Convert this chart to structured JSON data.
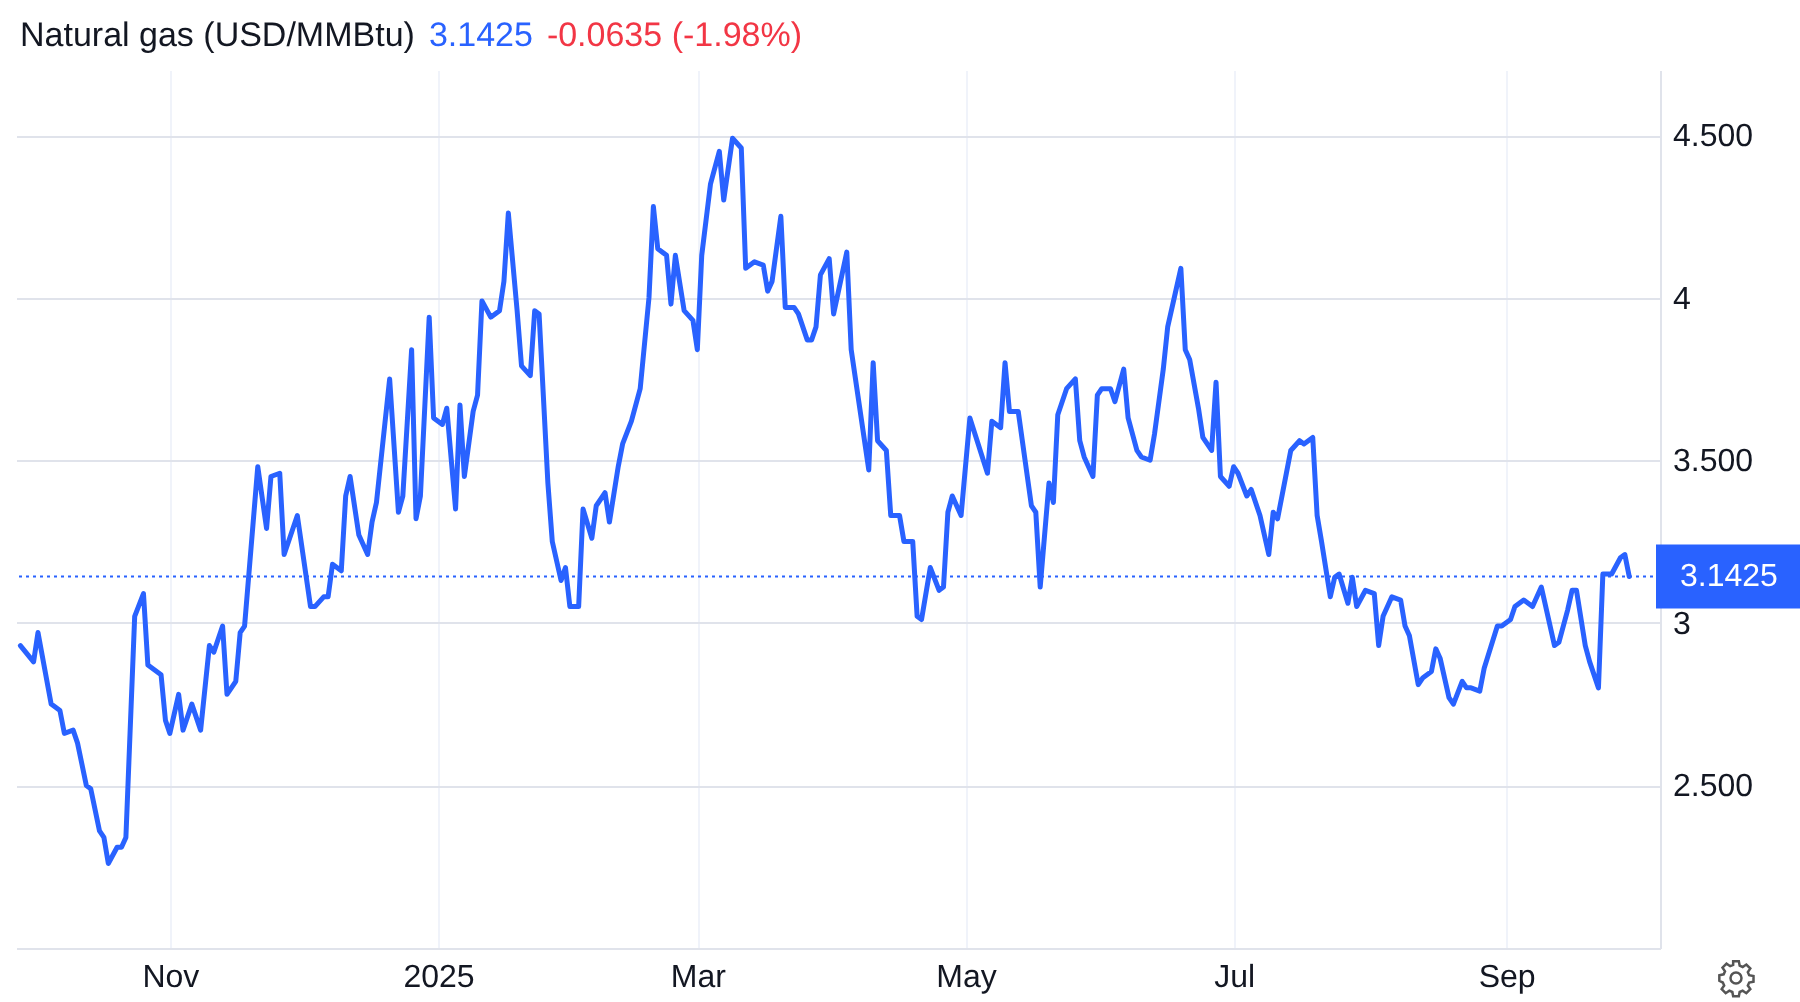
{
  "chart_data": {
    "type": "line",
    "title": "Natural gas (USD/MMBtu)",
    "annotations": [
      "3.1425",
      "-0.0635 (-1.98%)"
    ],
    "x": [
      "2024-09-28",
      "2024-10-01",
      "2024-10-02",
      "2024-10-05",
      "2024-10-07",
      "2024-10-08",
      "2024-10-10",
      "2024-10-11",
      "2024-10-13",
      "2024-10-14",
      "2024-10-16",
      "2024-10-17",
      "2024-10-18",
      "2024-10-20",
      "2024-10-21",
      "2024-10-22",
      "2024-10-24",
      "2024-10-26",
      "2024-10-27",
      "2024-10-30",
      "2024-10-31",
      "2024-11-01",
      "2024-11-03",
      "2024-11-04",
      "2024-11-06",
      "2024-11-08",
      "2024-11-10",
      "2024-11-11",
      "2024-11-13",
      "2024-11-14",
      "2024-11-16",
      "2024-11-17",
      "2024-11-18",
      "2024-11-21",
      "2024-11-23",
      "2024-11-24",
      "2024-11-26",
      "2024-11-27",
      "2024-11-30",
      "2024-12-03",
      "2024-12-04",
      "2024-12-06",
      "2024-12-07",
      "2024-12-08",
      "2024-12-10",
      "2024-12-11",
      "2024-12-12",
      "2024-12-14",
      "2024-12-16",
      "2024-12-17",
      "2024-12-18",
      "2024-12-21",
      "2024-12-23",
      "2024-12-24",
      "2024-12-26",
      "2024-12-27",
      "2024-12-28",
      "2024-12-30",
      "2024-12-31",
      "2025-01-02",
      "2025-01-03",
      "2025-01-05",
      "2025-01-06",
      "2025-01-07",
      "2025-01-09",
      "2025-01-10",
      "2025-01-11",
      "2025-01-13",
      "2025-01-15",
      "2025-01-16",
      "2025-01-17",
      "2025-01-19",
      "2025-01-20",
      "2025-01-22",
      "2025-01-23",
      "2025-01-24",
      "2025-01-26",
      "2025-01-27",
      "2025-01-29",
      "2025-01-30",
      "2025-01-31",
      "2025-02-02",
      "2025-02-03",
      "2025-02-05",
      "2025-02-06",
      "2025-02-08",
      "2025-02-09",
      "2025-02-11",
      "2025-02-12",
      "2025-02-14",
      "2025-02-16",
      "2025-02-18",
      "2025-02-19",
      "2025-02-20",
      "2025-02-22",
      "2025-02-23",
      "2025-02-24",
      "2025-02-26",
      "2025-02-28",
      "2025-03-01",
      "2025-03-02",
      "2025-03-04",
      "2025-03-06",
      "2025-03-07",
      "2025-03-09",
      "2025-03-11",
      "2025-03-12",
      "2025-03-14",
      "2025-03-16",
      "2025-03-17",
      "2025-03-18",
      "2025-03-20",
      "2025-03-21",
      "2025-03-23",
      "2025-03-24",
      "2025-03-26",
      "2025-03-27",
      "2025-03-28",
      "2025-03-29",
      "2025-03-31",
      "2025-04-01",
      "2025-04-04",
      "2025-04-05",
      "2025-04-09",
      "2025-04-10",
      "2025-04-11",
      "2025-04-13",
      "2025-04-14",
      "2025-04-16",
      "2025-04-17",
      "2025-04-19",
      "2025-04-20",
      "2025-04-21",
      "2025-04-23",
      "2025-04-25",
      "2025-04-26",
      "2025-04-27",
      "2025-04-28",
      "2025-04-30",
      "2025-05-02",
      "2025-05-06",
      "2025-05-07",
      "2025-05-09",
      "2025-05-10",
      "2025-05-11",
      "2025-05-13",
      "2025-05-16",
      "2025-05-17",
      "2025-05-18",
      "2025-05-20",
      "2025-05-21",
      "2025-05-22",
      "2025-05-24",
      "2025-05-26",
      "2025-05-27",
      "2025-05-28",
      "2025-05-30",
      "2025-05-31",
      "2025-06-01",
      "2025-06-03",
      "2025-06-04",
      "2025-06-06",
      "2025-06-07",
      "2025-06-09",
      "2025-06-10",
      "2025-06-12",
      "2025-06-13",
      "2025-06-15",
      "2025-06-16",
      "2025-06-19",
      "2025-06-20",
      "2025-06-21",
      "2025-06-23",
      "2025-06-24",
      "2025-06-26",
      "2025-06-27",
      "2025-06-28",
      "2025-06-30",
      "2025-07-01",
      "2025-07-02",
      "2025-07-04",
      "2025-07-05",
      "2025-07-07",
      "2025-07-09",
      "2025-07-10",
      "2025-07-11",
      "2025-07-13",
      "2025-07-14",
      "2025-07-16",
      "2025-07-17",
      "2025-07-19",
      "2025-07-20",
      "2025-07-21",
      "2025-07-23",
      "2025-07-24",
      "2025-07-25",
      "2025-07-27",
      "2025-07-28",
      "2025-07-29",
      "2025-07-31",
      "2025-08-02",
      "2025-08-03",
      "2025-08-04",
      "2025-08-06",
      "2025-08-08",
      "2025-08-09",
      "2025-08-10",
      "2025-08-12",
      "2025-08-13",
      "2025-08-15",
      "2025-08-16",
      "2025-08-17",
      "2025-08-19",
      "2025-08-20",
      "2025-08-22",
      "2025-08-23",
      "2025-08-24",
      "2025-08-26",
      "2025-08-27",
      "2025-08-30",
      "2025-08-31",
      "2025-09-02",
      "2025-09-03",
      "2025-09-05",
      "2025-09-07",
      "2025-09-09",
      "2025-09-12",
      "2025-09-13",
      "2025-09-15",
      "2025-09-16",
      "2025-09-17",
      "2025-09-19",
      "2025-09-20",
      "2025-09-22",
      "2025-09-23",
      "2025-09-25",
      "2025-09-27",
      "2025-09-28",
      "2025-09-29"
    ],
    "series": [
      {
        "color": "#2962ff",
        "values": [
          2.93,
          2.88,
          2.97,
          2.75,
          2.73,
          2.66,
          2.67,
          2.63,
          2.5,
          2.49,
          2.36,
          2.34,
          2.26,
          2.31,
          2.31,
          2.34,
          3.02,
          3.09,
          2.87,
          2.84,
          2.7,
          2.66,
          2.78,
          2.67,
          2.75,
          2.67,
          2.93,
          2.91,
          2.99,
          2.78,
          2.82,
          2.97,
          2.99,
          3.48,
          3.29,
          3.45,
          3.46,
          3.21,
          3.33,
          3.05,
          3.05,
          3.08,
          3.08,
          3.18,
          3.16,
          3.39,
          3.45,
          3.27,
          3.21,
          3.31,
          3.37,
          3.75,
          3.34,
          3.39,
          3.84,
          3.32,
          3.39,
          3.94,
          3.63,
          3.61,
          3.66,
          3.35,
          3.67,
          3.45,
          3.65,
          3.7,
          3.99,
          3.94,
          3.96,
          4.05,
          4.26,
          3.96,
          3.79,
          3.76,
          3.96,
          3.95,
          3.43,
          3.25,
          3.13,
          3.17,
          3.05,
          3.05,
          3.35,
          3.26,
          3.36,
          3.4,
          3.31,
          3.48,
          3.55,
          3.62,
          3.72,
          4.0,
          4.28,
          4.15,
          4.13,
          3.98,
          4.13,
          3.96,
          3.93,
          3.84,
          4.13,
          4.35,
          4.45,
          4.3,
          4.49,
          4.46,
          4.09,
          4.11,
          4.1,
          4.02,
          4.05,
          4.25,
          3.97,
          3.97,
          3.95,
          3.87,
          3.87,
          3.91,
          4.07,
          4.12,
          3.95,
          4.14,
          3.84,
          3.47,
          3.8,
          3.56,
          3.53,
          3.33,
          3.33,
          3.25,
          3.25,
          3.02,
          3.01,
          3.17,
          3.1,
          3.11,
          3.34,
          3.39,
          3.33,
          3.63,
          3.46,
          3.62,
          3.6,
          3.8,
          3.65,
          3.65,
          3.36,
          3.34,
          3.11,
          3.43,
          3.37,
          3.64,
          3.72,
          3.75,
          3.56,
          3.51,
          3.45,
          3.7,
          3.72,
          3.72,
          3.68,
          3.78,
          3.63,
          3.53,
          3.51,
          3.5,
          3.58,
          3.78,
          3.91,
          4.09,
          3.84,
          3.81,
          3.66,
          3.57,
          3.53,
          3.74,
          3.45,
          3.42,
          3.48,
          3.46,
          3.39,
          3.41,
          3.33,
          3.21,
          3.34,
          3.32,
          3.46,
          3.53,
          3.56,
          3.55,
          3.57,
          3.33,
          3.25,
          3.08,
          3.14,
          3.15,
          3.06,
          3.14,
          3.05,
          3.1,
          3.09,
          2.93,
          3.02,
          3.08,
          3.07,
          2.99,
          2.96,
          2.81,
          2.83,
          2.85,
          2.92,
          2.89,
          2.77,
          2.75,
          2.82,
          2.8,
          2.8,
          2.79,
          2.86,
          2.99,
          2.99,
          3.01,
          3.05,
          3.07,
          3.05,
          3.11,
          2.93,
          2.94,
          3.04,
          3.1,
          3.1,
          2.93,
          2.88,
          2.8,
          3.15,
          3.15,
          3.2,
          3.21,
          3.1425
        ]
      }
    ],
    "xlim": [
      "2024-09-27",
      "2025-10-06"
    ],
    "xticks": [
      {
        "value": "2024-11-01",
        "label": "Nov"
      },
      {
        "value": "2025-01-01",
        "label": "2025"
      },
      {
        "value": "2025-03-01",
        "label": "Mar"
      },
      {
        "value": "2025-05-01",
        "label": "May"
      },
      {
        "value": "2025-07-01",
        "label": "Jul"
      },
      {
        "value": "2025-09-01",
        "label": "Sep"
      }
    ],
    "ylim": [
      2.0,
      4.7
    ],
    "yticks": [
      {
        "value": 2.5,
        "label": "2.500"
      },
      3,
      {
        "value": 3.5,
        "label": "3.500"
      },
      4,
      {
        "value": 4.5,
        "label": "4.500"
      }
    ],
    "grid": true,
    "ref_lines": [
      {
        "axis": "y",
        "value": 3.1425,
        "label": "3.1425",
        "color": "#2962ff",
        "line_style": "dotted"
      }
    ]
  }
}
